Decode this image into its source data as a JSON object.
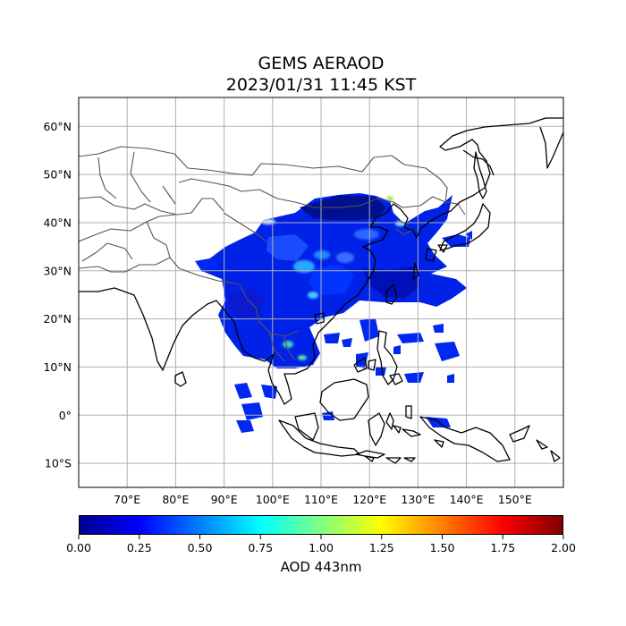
{
  "title_line1": "GEMS AERAOD",
  "title_line2": "2023/01/31 11:45 KST",
  "colorbar": {
    "label": "AOD 443nm",
    "colormap": "jet",
    "min": 0.0,
    "max": 2.0,
    "ticks": [
      "0.00",
      "0.25",
      "0.50",
      "0.75",
      "1.00",
      "1.25",
      "1.50",
      "1.75",
      "2.00"
    ]
  },
  "map": {
    "lon_range": [
      60,
      160
    ],
    "lat_range": [
      -15,
      66
    ],
    "lon_ticks": [
      {
        "v": 70,
        "label": "70°E"
      },
      {
        "v": 80,
        "label": "80°E"
      },
      {
        "v": 90,
        "label": "90°E"
      },
      {
        "v": 100,
        "label": "100°E"
      },
      {
        "v": 110,
        "label": "110°E"
      },
      {
        "v": 120,
        "label": "120°E"
      },
      {
        "v": 130,
        "label": "130°E"
      },
      {
        "v": 140,
        "label": "140°E"
      },
      {
        "v": 150,
        "label": "150°E"
      }
    ],
    "lat_ticks": [
      {
        "v": 60,
        "label": "60°N"
      },
      {
        "v": 50,
        "label": "50°N"
      },
      {
        "v": 40,
        "label": "40°N"
      },
      {
        "v": 30,
        "label": "30°N"
      },
      {
        "v": 20,
        "label": "20°N"
      },
      {
        "v": 10,
        "label": "10°N"
      },
      {
        "v": 0,
        "label": "0°"
      },
      {
        "v": -10,
        "label": "10°S"
      }
    ],
    "gridlines": true,
    "colors": {
      "coast": "#000000",
      "border": "#555555",
      "grid": "#b0b0b0",
      "aod_low": "#00008b",
      "aod_mid": "#0000ff",
      "aod_high": "#00ffff"
    }
  }
}
